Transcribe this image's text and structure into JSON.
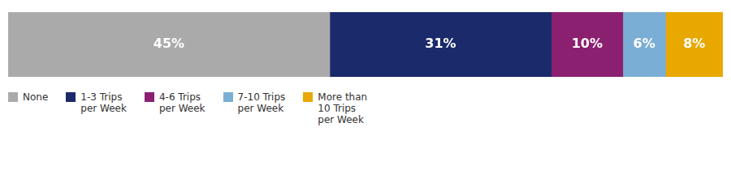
{
  "chart_data": {
    "type": "bar",
    "orientation": "horizontal",
    "stacked": true,
    "categories": [
      null
    ],
    "series": [
      {
        "name": "None",
        "color": "#aaaaaa",
        "values": [
          45
        ],
        "value_labels": [
          "45%"
        ]
      },
      {
        "name": "1-3 Trips\nper Week",
        "color": "#1b2a6b",
        "values": [
          31
        ],
        "value_labels": [
          "31%"
        ]
      },
      {
        "name": "4-6 Trips\nper Week",
        "color": "#8b2070",
        "values": [
          10
        ],
        "value_labels": [
          "10%"
        ]
      },
      {
        "name": "7-10 Trips\nper Week",
        "color": "#7baed4",
        "values": [
          6
        ],
        "value_labels": [
          "6%"
        ]
      },
      {
        "name": "More than\n10 Trips\nper Week",
        "color": "#e8a800",
        "values": [
          8
        ],
        "value_labels": [
          "8%"
        ]
      }
    ],
    "xlim": [
      0,
      100
    ],
    "data_labels": true,
    "tick_labels": false,
    "grid": false,
    "legend": "bottom"
  }
}
